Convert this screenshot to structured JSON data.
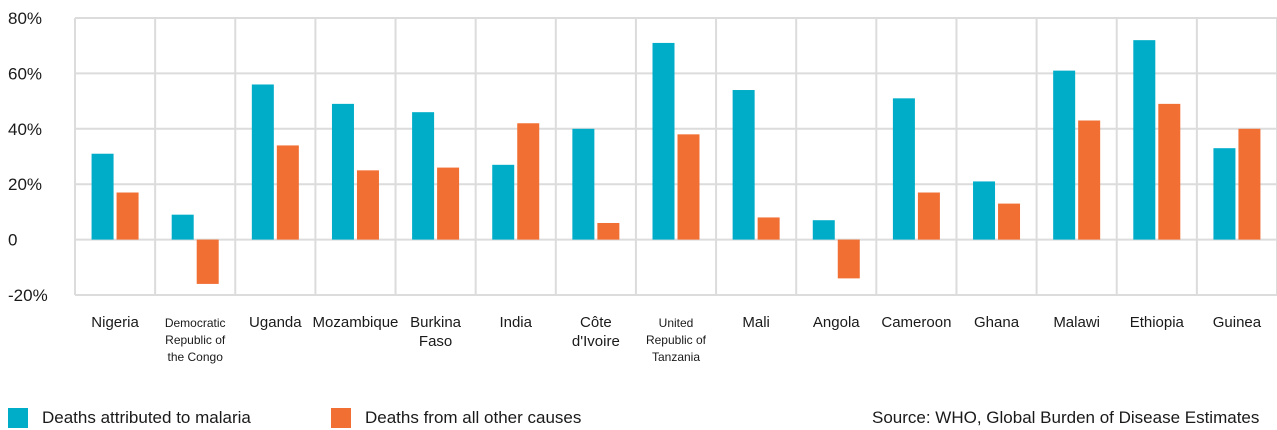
{
  "chart_data": {
    "type": "bar",
    "categories": [
      [
        "Nigeria"
      ],
      [
        "Democratic",
        "Republic of",
        "the Congo"
      ],
      [
        "Uganda"
      ],
      [
        "Mozambique"
      ],
      [
        "Burkina",
        "Faso"
      ],
      [
        "India"
      ],
      [
        "Côte",
        "d'Ivoire"
      ],
      [
        "United",
        "Republic of",
        "Tanzania"
      ],
      [
        "Mali"
      ],
      [
        "Angola"
      ],
      [
        "Cameroon"
      ],
      [
        "Ghana"
      ],
      [
        "Malawi"
      ],
      [
        "Ethiopia"
      ],
      [
        "Guinea"
      ]
    ],
    "series": [
      {
        "name": "Deaths attributed to malaria",
        "color": "#00adc8",
        "values": [
          31,
          9,
          56,
          49,
          46,
          27,
          40,
          71,
          54,
          7,
          51,
          21,
          61,
          72,
          33
        ]
      },
      {
        "name": "Deaths from all other causes",
        "color": "#f26f34",
        "values": [
          17,
          -16,
          34,
          25,
          26,
          42,
          6,
          38,
          8,
          -14,
          17,
          13,
          43,
          49,
          40
        ]
      }
    ],
    "ylim": [
      -20,
      80
    ],
    "yticks": [
      {
        "value": 80,
        "label": "80%"
      },
      {
        "value": 60,
        "label": "60%"
      },
      {
        "value": 40,
        "label": "40%"
      },
      {
        "value": 20,
        "label": "20%"
      },
      {
        "value": 0,
        "label": "0"
      },
      {
        "value": -20,
        "label": "-20%"
      }
    ],
    "grid": true,
    "legend_position": "bottom-left"
  },
  "source": "Source: WHO, Global Burden of Disease Estimates"
}
